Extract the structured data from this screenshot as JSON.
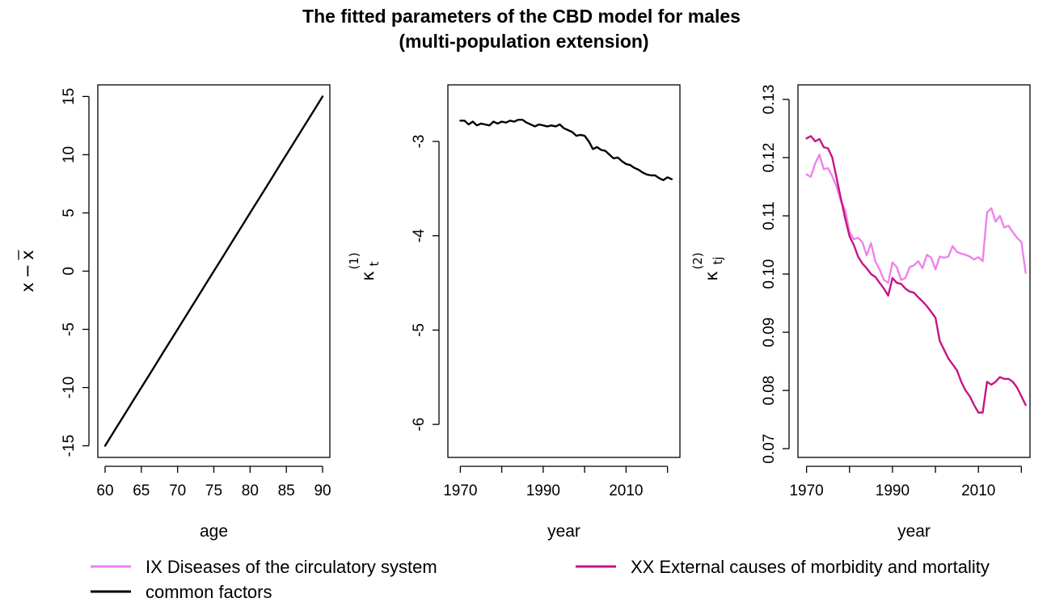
{
  "title": {
    "line1": "The fitted parameters of the CBD model for males",
    "line2": "(multi-population extension)"
  },
  "colors": {
    "IX": "#ee82ee",
    "XX": "#c71585",
    "common": "#000000",
    "axis": "#000000"
  },
  "legend": {
    "items": [
      {
        "label": "IX Diseases of the circulatory system",
        "color": "#ee82ee"
      },
      {
        "label": "XX External causes of morbidity and mortality",
        "color": "#c71585"
      },
      {
        "label": "common factors",
        "color": "#000000"
      }
    ]
  },
  "chart_data": [
    {
      "type": "line",
      "xlabel": "age",
      "ylabel": {
        "base": "x",
        "op": "−",
        "bar": "x"
      },
      "xlim": [
        59,
        91
      ],
      "ylim": [
        -16,
        16
      ],
      "xticks": [
        60,
        65,
        70,
        75,
        80,
        85,
        90
      ],
      "yticks": [
        -15,
        -10,
        -5,
        0,
        5,
        10,
        15
      ],
      "series": [
        {
          "color": "#000000",
          "x": [
            60,
            61,
            62,
            63,
            64,
            65,
            66,
            67,
            68,
            69,
            70,
            71,
            72,
            73,
            74,
            75,
            76,
            77,
            78,
            79,
            80,
            81,
            82,
            83,
            84,
            85,
            86,
            87,
            88,
            89,
            90
          ],
          "y": [
            -15,
            -14,
            -13,
            -12,
            -11,
            -10,
            -9,
            -8,
            -7,
            -6,
            -5,
            -4,
            -3,
            -2,
            -1,
            0,
            1,
            2,
            3,
            4,
            5,
            6,
            7,
            8,
            9,
            10,
            11,
            12,
            13,
            14,
            15
          ]
        }
      ]
    },
    {
      "type": "line",
      "xlabel": "year",
      "ylabel": {
        "base": "κ",
        "sub": "t",
        "sup": "(1)"
      },
      "xlim": [
        1967,
        2023
      ],
      "ylim": [
        -6.35,
        -2.4
      ],
      "xticks": [
        1970,
        1980,
        1990,
        2000,
        2010,
        2020
      ],
      "xtick_labels": [
        "1970",
        "",
        "1990",
        "",
        "2010",
        ""
      ],
      "yticks": [
        -6,
        -5,
        -4,
        -3
      ],
      "series": [
        {
          "color": "#000000",
          "x": [
            1970,
            1971,
            1972,
            1973,
            1974,
            1975,
            1976,
            1977,
            1978,
            1979,
            1980,
            1981,
            1982,
            1983,
            1984,
            1985,
            1986,
            1987,
            1988,
            1989,
            1990,
            1991,
            1992,
            1993,
            1994,
            1995,
            1996,
            1997,
            1998,
            1999,
            2000,
            2001,
            2002,
            2003,
            2004,
            2005,
            2006,
            2007,
            2008,
            2009,
            2010,
            2011,
            2012,
            2013,
            2014,
            2015,
            2016,
            2017,
            2018,
            2019,
            2020,
            2021
          ],
          "y": [
            -2.78,
            -2.78,
            -2.82,
            -2.79,
            -2.83,
            -2.81,
            -2.82,
            -2.83,
            -2.79,
            -2.81,
            -2.79,
            -2.8,
            -2.78,
            -2.79,
            -2.77,
            -2.77,
            -2.8,
            -2.82,
            -2.84,
            -2.82,
            -2.83,
            -2.84,
            -2.83,
            -2.84,
            -2.82,
            -2.86,
            -2.88,
            -2.9,
            -2.94,
            -2.93,
            -2.94,
            -3.0,
            -3.08,
            -3.06,
            -3.09,
            -3.1,
            -3.14,
            -3.18,
            -3.17,
            -3.21,
            -3.24,
            -3.25,
            -3.28,
            -3.3,
            -3.33,
            -3.35,
            -3.36,
            -3.36,
            -3.39,
            -3.41,
            -3.38,
            -3.4
          ]
        }
      ]
    },
    {
      "type": "line",
      "xlabel": "year",
      "ylabel": {
        "base": "κ",
        "sub": "tj",
        "sup": "(2)"
      },
      "xlim": [
        1968,
        2022
      ],
      "ylim": [
        0.0685,
        0.1325
      ],
      "xticks": [
        1970,
        1980,
        1990,
        2000,
        2010,
        2020
      ],
      "xtick_labels": [
        "1970",
        "",
        "1990",
        "",
        "2010",
        ""
      ],
      "yticks": [
        0.07,
        0.08,
        0.09,
        0.1,
        0.11,
        0.12,
        0.13
      ],
      "ytick_labels": [
        "0.07",
        "0.08",
        "0.09",
        "0.10",
        "0.11",
        "0.12",
        "0.13"
      ],
      "series": [
        {
          "name": "IX Diseases of the circulatory system",
          "color": "#ee82ee",
          "x": [
            1970,
            1971,
            1972,
            1973,
            1974,
            1975,
            1976,
            1977,
            1978,
            1979,
            1980,
            1981,
            1982,
            1983,
            1984,
            1985,
            1986,
            1987,
            1988,
            1989,
            1990,
            1991,
            1992,
            1993,
            1994,
            1995,
            1996,
            1997,
            1998,
            1999,
            2000,
            2001,
            2002,
            2003,
            2004,
            2005,
            2006,
            2007,
            2008,
            2009,
            2010,
            2011,
            2012,
            2013,
            2014,
            2015,
            2016,
            2017,
            2018,
            2019,
            2020,
            2021
          ],
          "y": [
            0.1171,
            0.1167,
            0.119,
            0.1205,
            0.118,
            0.1182,
            0.1168,
            0.115,
            0.1125,
            0.111,
            0.1072,
            0.106,
            0.1062,
            0.1055,
            0.1032,
            0.1053,
            0.1022,
            0.1008,
            0.099,
            0.0985,
            0.102,
            0.1012,
            0.099,
            0.0993,
            0.1012,
            0.1015,
            0.1022,
            0.101,
            0.1033,
            0.1028,
            0.1008,
            0.103,
            0.1028,
            0.103,
            0.1048,
            0.1038,
            0.1035,
            0.1033,
            0.103,
            0.1025,
            0.1029,
            0.1022,
            0.1106,
            0.1113,
            0.109,
            0.11,
            0.108,
            0.1083,
            0.1072,
            0.1062,
            0.1055,
            0.1002
          ]
        },
        {
          "name": "XX External causes of morbidity and mortality",
          "color": "#c71585",
          "x": [
            1970,
            1971,
            1972,
            1973,
            1974,
            1975,
            1976,
            1977,
            1978,
            1979,
            1980,
            1981,
            1982,
            1983,
            1984,
            1985,
            1986,
            1987,
            1988,
            1989,
            1990,
            1991,
            1992,
            1993,
            1994,
            1995,
            1996,
            1997,
            1998,
            1999,
            2000,
            2001,
            2002,
            2003,
            2004,
            2005,
            2006,
            2007,
            2008,
            2009,
            2010,
            2011,
            2012,
            2013,
            2014,
            2015,
            2016,
            2017,
            2018,
            2019,
            2020,
            2021
          ],
          "y": [
            0.1233,
            0.1237,
            0.1228,
            0.1232,
            0.1218,
            0.1216,
            0.12,
            0.1165,
            0.113,
            0.1095,
            0.1065,
            0.105,
            0.103,
            0.1018,
            0.101,
            0.1,
            0.0995,
            0.0985,
            0.0975,
            0.0963,
            0.0993,
            0.0985,
            0.0983,
            0.0975,
            0.097,
            0.0968,
            0.096,
            0.0953,
            0.0945,
            0.0935,
            0.0925,
            0.0885,
            0.087,
            0.0855,
            0.0845,
            0.0835,
            0.0815,
            0.08,
            0.079,
            0.0775,
            0.0762,
            0.0762,
            0.0815,
            0.081,
            0.0815,
            0.0823,
            0.082,
            0.082,
            0.0815,
            0.0805,
            0.079,
            0.0775
          ]
        }
      ]
    }
  ]
}
